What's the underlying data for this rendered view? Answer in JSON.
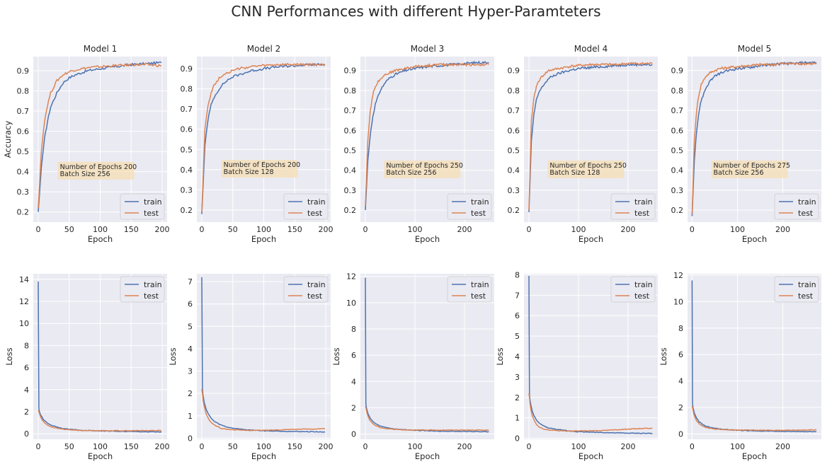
{
  "title": "CNN Performances with different Hyper-Paramteters",
  "colors": {
    "train": "#4c72b0",
    "test": "#dd8452",
    "axes_bg": "#eaeaf2",
    "grid": "#ffffff",
    "annotation_bg": "#f5deb3"
  },
  "chart_data": [
    {
      "type": "line",
      "title": "Model 1",
      "xlabel": "Epoch",
      "ylabel": "Accuracy",
      "xlim": [
        -8,
        208
      ],
      "ylim": [
        0.15,
        0.97
      ],
      "xticks": [
        0,
        50,
        100,
        150,
        200
      ],
      "yticks": [
        0.2,
        0.3,
        0.4,
        0.5,
        0.6,
        0.7,
        0.8,
        0.9
      ],
      "legend": "lower-right",
      "annotation": [
        "Number of Epochs 200",
        "Batch Size 256"
      ],
      "annotation_at": [
        35,
        0.41
      ],
      "series": [
        {
          "name": "train",
          "x": [
            0,
            5,
            10,
            15,
            20,
            30,
            40,
            50,
            60,
            80,
            100,
            125,
            150,
            175,
            199
          ],
          "values": [
            0.2,
            0.42,
            0.56,
            0.65,
            0.72,
            0.79,
            0.84,
            0.865,
            0.88,
            0.9,
            0.91,
            0.92,
            0.93,
            0.935,
            0.94
          ]
        },
        {
          "name": "test",
          "x": [
            0,
            5,
            10,
            15,
            20,
            30,
            40,
            50,
            60,
            80,
            100,
            125,
            150,
            175,
            199
          ],
          "values": [
            0.22,
            0.5,
            0.65,
            0.73,
            0.79,
            0.85,
            0.88,
            0.895,
            0.905,
            0.915,
            0.92,
            0.925,
            0.93,
            0.93,
            0.925
          ]
        }
      ]
    },
    {
      "type": "line",
      "title": "Model 2",
      "xlabel": "Epoch",
      "ylabel": "",
      "xlim": [
        -8,
        208
      ],
      "ylim": [
        0.14,
        0.96
      ],
      "xticks": [
        0,
        50,
        100,
        150,
        200
      ],
      "yticks": [
        0.2,
        0.3,
        0.4,
        0.5,
        0.6,
        0.7,
        0.8,
        0.9
      ],
      "legend": "lower-right",
      "annotation": [
        "Number of Epochs 200",
        "Batch Size 128"
      ],
      "annotation_at": [
        35,
        0.41
      ],
      "series": [
        {
          "name": "train",
          "x": [
            0,
            5,
            10,
            15,
            20,
            30,
            40,
            50,
            60,
            80,
            100,
            125,
            150,
            175,
            199
          ],
          "values": [
            0.18,
            0.52,
            0.65,
            0.72,
            0.76,
            0.81,
            0.84,
            0.86,
            0.87,
            0.89,
            0.9,
            0.91,
            0.915,
            0.92,
            0.92
          ]
        },
        {
          "name": "test",
          "x": [
            0,
            5,
            10,
            15,
            20,
            30,
            40,
            50,
            60,
            80,
            100,
            125,
            150,
            175,
            199
          ],
          "values": [
            0.19,
            0.6,
            0.72,
            0.78,
            0.82,
            0.86,
            0.88,
            0.89,
            0.9,
            0.91,
            0.915,
            0.92,
            0.92,
            0.92,
            0.92
          ]
        }
      ]
    },
    {
      "type": "line",
      "title": "Model 3",
      "xlabel": "Epoch",
      "ylabel": "",
      "xlim": [
        -10,
        260
      ],
      "ylim": [
        0.14,
        0.97
      ],
      "xticks": [
        0,
        100,
        200
      ],
      "yticks": [
        0.2,
        0.3,
        0.4,
        0.5,
        0.6,
        0.7,
        0.8,
        0.9
      ],
      "legend": "lower-right",
      "annotation": [
        "Number of Epochs 250",
        "Batch Size 256"
      ],
      "annotation_at": [
        42,
        0.41
      ],
      "series": [
        {
          "name": "train",
          "x": [
            0,
            5,
            10,
            15,
            20,
            30,
            40,
            50,
            60,
            80,
            100,
            125,
            150,
            175,
            200,
            225,
            249
          ],
          "values": [
            0.2,
            0.45,
            0.58,
            0.67,
            0.73,
            0.8,
            0.84,
            0.865,
            0.88,
            0.9,
            0.91,
            0.92,
            0.925,
            0.93,
            0.935,
            0.94,
            0.94
          ]
        },
        {
          "name": "test",
          "x": [
            0,
            5,
            10,
            15,
            20,
            30,
            40,
            50,
            60,
            80,
            100,
            125,
            150,
            175,
            200,
            225,
            249
          ],
          "values": [
            0.22,
            0.55,
            0.7,
            0.78,
            0.82,
            0.86,
            0.88,
            0.89,
            0.9,
            0.91,
            0.92,
            0.925,
            0.93,
            0.93,
            0.93,
            0.93,
            0.93
          ]
        }
      ]
    },
    {
      "type": "line",
      "title": "Model 4",
      "xlabel": "Epoch",
      "ylabel": "",
      "xlim": [
        -10,
        260
      ],
      "ylim": [
        0.14,
        0.97
      ],
      "xticks": [
        0,
        100,
        200
      ],
      "yticks": [
        0.2,
        0.3,
        0.4,
        0.5,
        0.6,
        0.7,
        0.8,
        0.9
      ],
      "legend": "lower-right",
      "annotation": [
        "Number of Epochs 250",
        "Batch Size 128"
      ],
      "annotation_at": [
        42,
        0.41
      ],
      "series": [
        {
          "name": "train",
          "x": [
            0,
            5,
            10,
            15,
            20,
            30,
            40,
            50,
            60,
            80,
            100,
            125,
            150,
            175,
            200,
            225,
            249
          ],
          "values": [
            0.19,
            0.55,
            0.68,
            0.75,
            0.79,
            0.83,
            0.86,
            0.875,
            0.885,
            0.9,
            0.91,
            0.915,
            0.92,
            0.925,
            0.93,
            0.93,
            0.93
          ]
        },
        {
          "name": "test",
          "x": [
            0,
            5,
            10,
            15,
            20,
            30,
            40,
            50,
            60,
            80,
            100,
            125,
            150,
            175,
            200,
            225,
            249
          ],
          "values": [
            0.2,
            0.65,
            0.76,
            0.82,
            0.85,
            0.88,
            0.9,
            0.905,
            0.91,
            0.92,
            0.925,
            0.93,
            0.93,
            0.93,
            0.935,
            0.935,
            0.935
          ]
        }
      ]
    },
    {
      "type": "line",
      "title": "Model 5",
      "xlabel": "Epoch",
      "ylabel": "",
      "xlim": [
        -10,
        285
      ],
      "ylim": [
        0.14,
        0.97
      ],
      "xticks": [
        0,
        100,
        200
      ],
      "yticks": [
        0.2,
        0.3,
        0.4,
        0.5,
        0.6,
        0.7,
        0.8,
        0.9
      ],
      "legend": "lower-right",
      "annotation": [
        "Number of Epochs 275",
        "Batch Size 256"
      ],
      "annotation_at": [
        47,
        0.41
      ],
      "series": [
        {
          "name": "train",
          "x": [
            0,
            5,
            10,
            15,
            20,
            30,
            40,
            50,
            60,
            80,
            100,
            125,
            150,
            175,
            200,
            225,
            250,
            274
          ],
          "values": [
            0.17,
            0.45,
            0.6,
            0.69,
            0.75,
            0.81,
            0.85,
            0.87,
            0.885,
            0.9,
            0.91,
            0.915,
            0.925,
            0.93,
            0.935,
            0.935,
            0.94,
            0.94
          ]
        },
        {
          "name": "test",
          "x": [
            0,
            5,
            10,
            15,
            20,
            30,
            40,
            50,
            60,
            80,
            100,
            125,
            150,
            175,
            200,
            225,
            250,
            274
          ],
          "values": [
            0.18,
            0.55,
            0.7,
            0.78,
            0.83,
            0.87,
            0.89,
            0.9,
            0.91,
            0.915,
            0.92,
            0.925,
            0.93,
            0.93,
            0.935,
            0.935,
            0.935,
            0.935
          ]
        }
      ]
    },
    {
      "type": "line",
      "title": "",
      "xlabel": "Epoch",
      "ylabel": "Loss",
      "xlim": [
        -8,
        208
      ],
      "ylim": [
        -0.5,
        14.5
      ],
      "xticks": [
        0,
        50,
        100,
        150,
        200
      ],
      "yticks": [
        0,
        2,
        4,
        6,
        8,
        10,
        12,
        14
      ],
      "legend": "upper-right",
      "series": [
        {
          "name": "train",
          "x": [
            0,
            1,
            2,
            4,
            7,
            10,
            15,
            20,
            30,
            40,
            50,
            70,
            100,
            150,
            199
          ],
          "values": [
            13.8,
            2.3,
            2.0,
            1.7,
            1.4,
            1.2,
            0.95,
            0.8,
            0.6,
            0.48,
            0.4,
            0.32,
            0.26,
            0.2,
            0.16
          ]
        },
        {
          "name": "test",
          "x": [
            0,
            1,
            2,
            4,
            7,
            10,
            15,
            20,
            30,
            40,
            50,
            70,
            100,
            150,
            199
          ],
          "values": [
            2.1,
            2.0,
            1.8,
            1.5,
            1.2,
            1.0,
            0.8,
            0.65,
            0.5,
            0.42,
            0.36,
            0.3,
            0.28,
            0.28,
            0.3
          ]
        }
      ]
    },
    {
      "type": "line",
      "title": "",
      "xlabel": "Epoch",
      "ylabel": "Loss",
      "xlim": [
        -8,
        208
      ],
      "ylim": [
        -0.05,
        7.35
      ],
      "xticks": [
        0,
        50,
        100,
        150,
        200
      ],
      "yticks": [
        0,
        1,
        2,
        3,
        4,
        5,
        6,
        7
      ],
      "legend": "upper-right",
      "series": [
        {
          "name": "train",
          "x": [
            0,
            1,
            2,
            4,
            7,
            10,
            15,
            20,
            30,
            40,
            50,
            70,
            100,
            150,
            199
          ],
          "values": [
            7.2,
            2.2,
            1.9,
            1.6,
            1.3,
            1.1,
            0.9,
            0.75,
            0.6,
            0.5,
            0.45,
            0.38,
            0.33,
            0.3,
            0.28
          ]
        },
        {
          "name": "test",
          "x": [
            0,
            1,
            2,
            4,
            7,
            10,
            15,
            20,
            30,
            40,
            50,
            70,
            100,
            150,
            199
          ],
          "values": [
            2.2,
            2.0,
            1.7,
            1.4,
            1.1,
            0.9,
            0.7,
            0.6,
            0.45,
            0.4,
            0.38,
            0.35,
            0.35,
            0.4,
            0.42
          ]
        }
      ]
    },
    {
      "type": "line",
      "title": "",
      "xlabel": "Epoch",
      "ylabel": "Loss",
      "xlim": [
        -10,
        260
      ],
      "ylim": [
        -0.4,
        12.2
      ],
      "xticks": [
        0,
        100,
        200
      ],
      "yticks": [
        0,
        2,
        4,
        6,
        8,
        10,
        12
      ],
      "legend": "upper-right",
      "series": [
        {
          "name": "train",
          "x": [
            0,
            1,
            2,
            4,
            7,
            10,
            15,
            20,
            30,
            40,
            60,
            80,
            100,
            150,
            200,
            249
          ],
          "values": [
            11.9,
            2.3,
            2.0,
            1.7,
            1.4,
            1.2,
            0.95,
            0.8,
            0.6,
            0.5,
            0.38,
            0.32,
            0.28,
            0.22,
            0.2,
            0.18
          ]
        },
        {
          "name": "test",
          "x": [
            0,
            1,
            2,
            4,
            7,
            10,
            15,
            20,
            30,
            40,
            60,
            80,
            100,
            150,
            200,
            249
          ],
          "values": [
            2.1,
            2.0,
            1.8,
            1.5,
            1.2,
            1.0,
            0.8,
            0.65,
            0.5,
            0.42,
            0.36,
            0.32,
            0.3,
            0.3,
            0.3,
            0.3
          ]
        }
      ]
    },
    {
      "type": "line",
      "title": "",
      "xlabel": "Epoch",
      "ylabel": "Loss",
      "xlim": [
        -10,
        260
      ],
      "ylim": [
        -0.05,
        8.05
      ],
      "xticks": [
        0,
        100,
        200
      ],
      "yticks": [
        0,
        1,
        2,
        3,
        4,
        5,
        6,
        7,
        8
      ],
      "legend": "upper-right",
      "series": [
        {
          "name": "train",
          "x": [
            0,
            1,
            2,
            4,
            7,
            10,
            15,
            20,
            30,
            40,
            60,
            80,
            100,
            150,
            200,
            249
          ],
          "values": [
            7.95,
            2.2,
            1.9,
            1.6,
            1.3,
            1.1,
            0.9,
            0.75,
            0.6,
            0.5,
            0.42,
            0.36,
            0.32,
            0.28,
            0.25,
            0.24
          ]
        },
        {
          "name": "test",
          "x": [
            0,
            1,
            2,
            4,
            7,
            10,
            15,
            20,
            30,
            40,
            60,
            80,
            100,
            150,
            200,
            249
          ],
          "values": [
            2.2,
            2.0,
            1.7,
            1.4,
            1.1,
            0.9,
            0.7,
            0.55,
            0.45,
            0.4,
            0.37,
            0.35,
            0.36,
            0.38,
            0.45,
            0.5
          ]
        }
      ]
    },
    {
      "type": "line",
      "title": "",
      "xlabel": "Epoch",
      "ylabel": "Loss",
      "xlim": [
        -10,
        285
      ],
      "ylim": [
        -0.4,
        12.1
      ],
      "xticks": [
        0,
        100,
        200
      ],
      "yticks": [
        0,
        2,
        4,
        6,
        8,
        10,
        12
      ],
      "legend": "upper-right",
      "series": [
        {
          "name": "train",
          "x": [
            0,
            1,
            2,
            4,
            7,
            10,
            15,
            20,
            30,
            40,
            60,
            80,
            100,
            150,
            200,
            250,
            274
          ],
          "values": [
            11.6,
            2.3,
            2.0,
            1.7,
            1.4,
            1.2,
            0.95,
            0.8,
            0.6,
            0.5,
            0.38,
            0.32,
            0.28,
            0.22,
            0.2,
            0.18,
            0.17
          ]
        },
        {
          "name": "test",
          "x": [
            0,
            1,
            2,
            4,
            7,
            10,
            15,
            20,
            30,
            40,
            60,
            80,
            100,
            150,
            200,
            250,
            274
          ],
          "values": [
            2.1,
            2.0,
            1.8,
            1.5,
            1.2,
            1.0,
            0.8,
            0.65,
            0.5,
            0.42,
            0.36,
            0.32,
            0.3,
            0.28,
            0.28,
            0.3,
            0.32
          ]
        }
      ]
    }
  ]
}
